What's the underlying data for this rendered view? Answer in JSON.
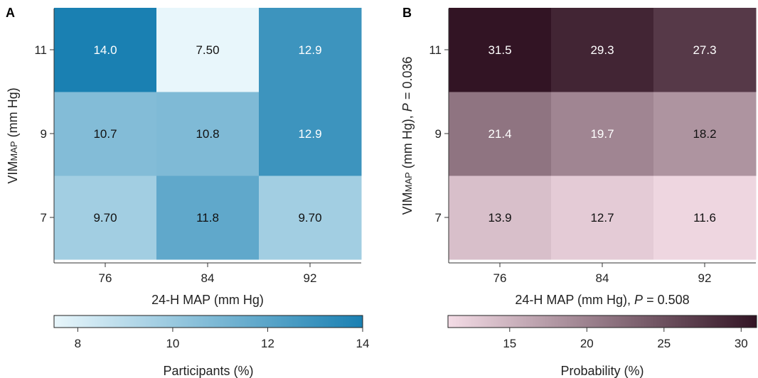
{
  "chart_data": [
    {
      "type": "heatmap",
      "panel_label": "A",
      "x_categories": [
        "76",
        "84",
        "92"
      ],
      "y_categories": [
        "7",
        "9",
        "11"
      ],
      "values": [
        [
          9.7,
          11.8,
          9.7
        ],
        [
          10.7,
          10.8,
          12.9
        ],
        [
          14.0,
          7.5,
          12.9
        ]
      ],
      "value_labels": [
        [
          "9.70",
          "11.8",
          "9.70"
        ],
        [
          "10.7",
          "10.8",
          "12.9"
        ],
        [
          "14.0",
          "7.50",
          "12.9"
        ]
      ],
      "xlabel": "24-H MAP (mm Hg)",
      "ylabel": {
        "main": "VIM",
        "sub": "MAP",
        "rest": " (mm Hg)",
        "p_prefix": "",
        "p_italic": "",
        "p_value": ""
      },
      "colorbar": {
        "label": "Participants (%)",
        "range": [
          7.5,
          14.0
        ],
        "ticks": [
          "8",
          "10",
          "12",
          "14"
        ],
        "tick_values": [
          8,
          10,
          12,
          14
        ]
      },
      "colors": {
        "low": "#e8f6fb",
        "high": "#1a80b2"
      }
    },
    {
      "type": "heatmap",
      "panel_label": "B",
      "x_categories": [
        "76",
        "84",
        "92"
      ],
      "y_categories": [
        "7",
        "9",
        "11"
      ],
      "values": [
        [
          13.9,
          12.7,
          11.6
        ],
        [
          21.4,
          19.7,
          18.2
        ],
        [
          31.5,
          29.3,
          27.3
        ]
      ],
      "value_labels": [
        [
          "13.9",
          "12.7",
          "11.6"
        ],
        [
          "21.4",
          "19.7",
          "18.2"
        ],
        [
          "31.5",
          "29.3",
          "27.3"
        ]
      ],
      "xlabel": {
        "text": "24-H MAP (mm Hg), ",
        "p_italic": "P",
        "p_value": " = 0.508"
      },
      "ylabel": {
        "main": "VIM",
        "sub": "MAP",
        "rest": " (mm Hg), ",
        "p_italic": "P",
        "p_value": " = 0.036"
      },
      "colorbar": {
        "label": "Probability (%)",
        "range": [
          11.0,
          31.0
        ],
        "ticks": [
          "15",
          "20",
          "25",
          "30"
        ],
        "tick_values": [
          15,
          20,
          25,
          30
        ]
      },
      "colors": {
        "low": "#f4dce6",
        "high": "#321424"
      }
    }
  ]
}
